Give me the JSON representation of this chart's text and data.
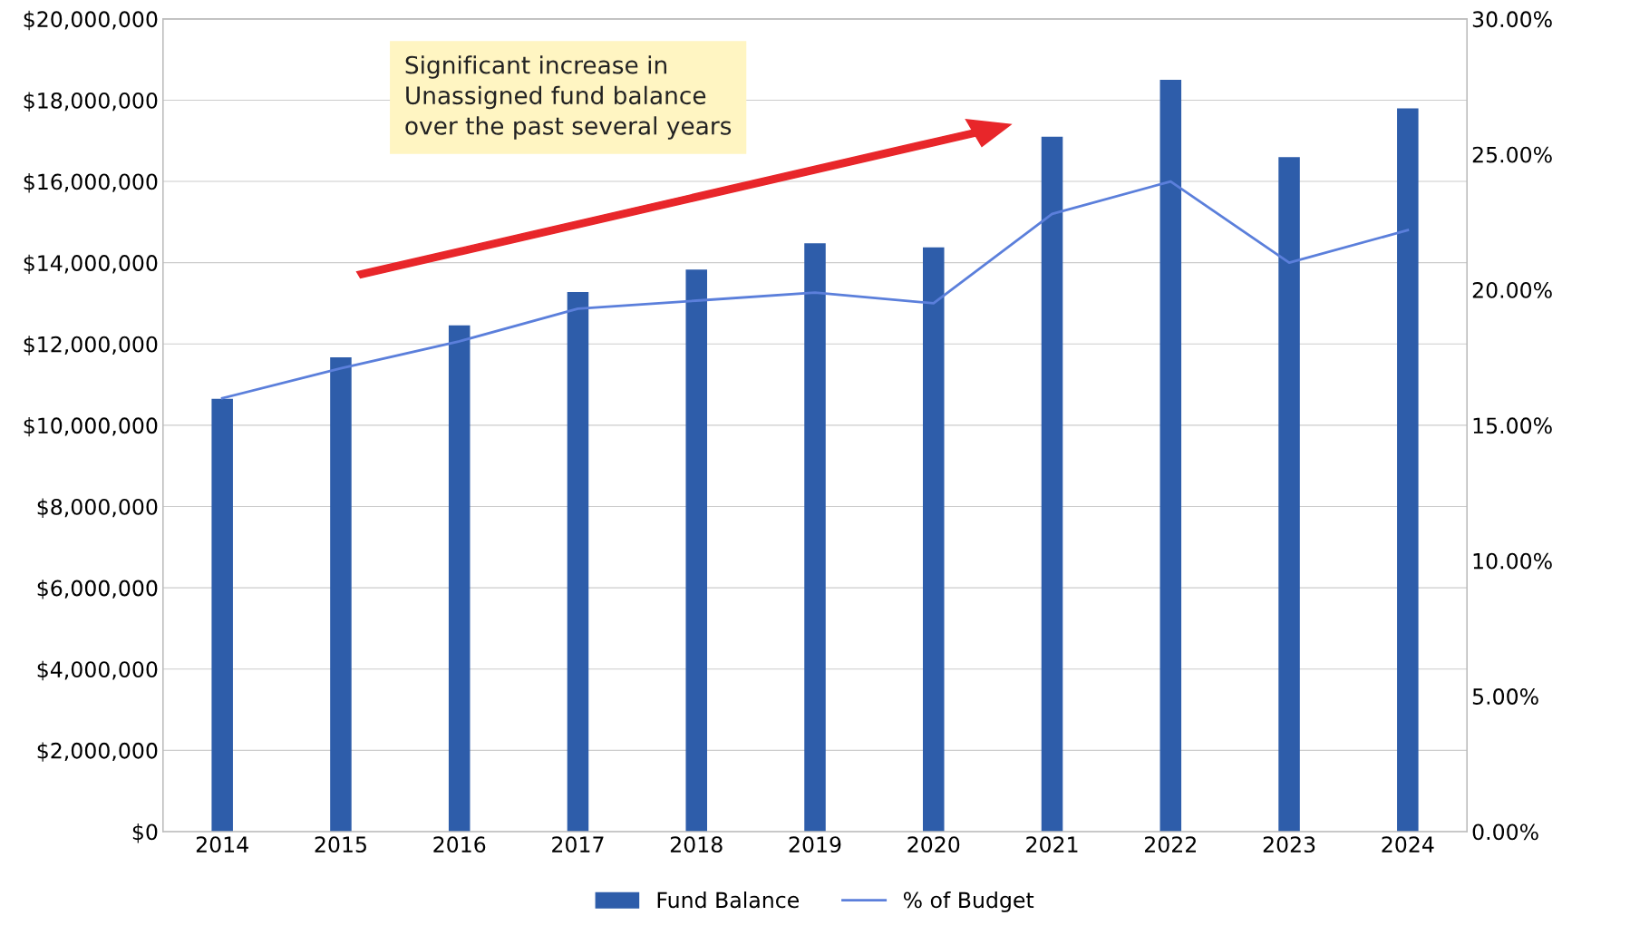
{
  "chart_data": {
    "type": "bar",
    "categories": [
      "2014",
      "2015",
      "2016",
      "2017",
      "2018",
      "2019",
      "2020",
      "2021",
      "2022",
      "2023",
      "2024"
    ],
    "series": [
      {
        "name": "Fund Balance",
        "color": "#2e5daa",
        "values": [
          10650000,
          11670000,
          12460000,
          13280000,
          13830000,
          14480000,
          14380000,
          17100000,
          18500000,
          16600000,
          17800000
        ]
      },
      {
        "name": "% of Budget",
        "type": "line",
        "axis": "y2",
        "color": "#5b7fdb",
        "values": [
          16.0,
          17.1,
          18.1,
          19.3,
          19.6,
          19.9,
          19.5,
          22.8,
          24.0,
          21.0,
          22.2
        ]
      }
    ],
    "ylim": [
      0,
      20000000
    ],
    "yticks": [
      {
        "value": 0,
        "label": "$0"
      },
      {
        "value": 2000000,
        "label": "$2,000,000"
      },
      {
        "value": 4000000,
        "label": "$4,000,000"
      },
      {
        "value": 6000000,
        "label": "$6,000,000"
      },
      {
        "value": 8000000,
        "label": "$8,000,000"
      },
      {
        "value": 10000000,
        "label": "$10,000,000"
      },
      {
        "value": 12000000,
        "label": "$12,000,000"
      },
      {
        "value": 14000000,
        "label": "$14,000,000"
      },
      {
        "value": 16000000,
        "label": "$16,000,000"
      },
      {
        "value": 18000000,
        "label": "$18,000,000"
      },
      {
        "value": 20000000,
        "label": "$20,000,000"
      }
    ],
    "y2lim": [
      0,
      30
    ],
    "y2ticks": [
      {
        "value": 0,
        "label": "0.00%"
      },
      {
        "value": 5,
        "label": "5.00%"
      },
      {
        "value": 10,
        "label": "10.00%"
      },
      {
        "value": 15,
        "label": "15.00%"
      },
      {
        "value": 20,
        "label": "20.00%"
      },
      {
        "value": 25,
        "label": "25.00%"
      },
      {
        "value": 30,
        "label": "30.00%"
      }
    ],
    "annotations": [
      "Significant increase in\nUnassigned fund balance\nover the past several years"
    ],
    "grid": "y",
    "legend": "bottom",
    "marker": "none",
    "line_style": "solid"
  }
}
